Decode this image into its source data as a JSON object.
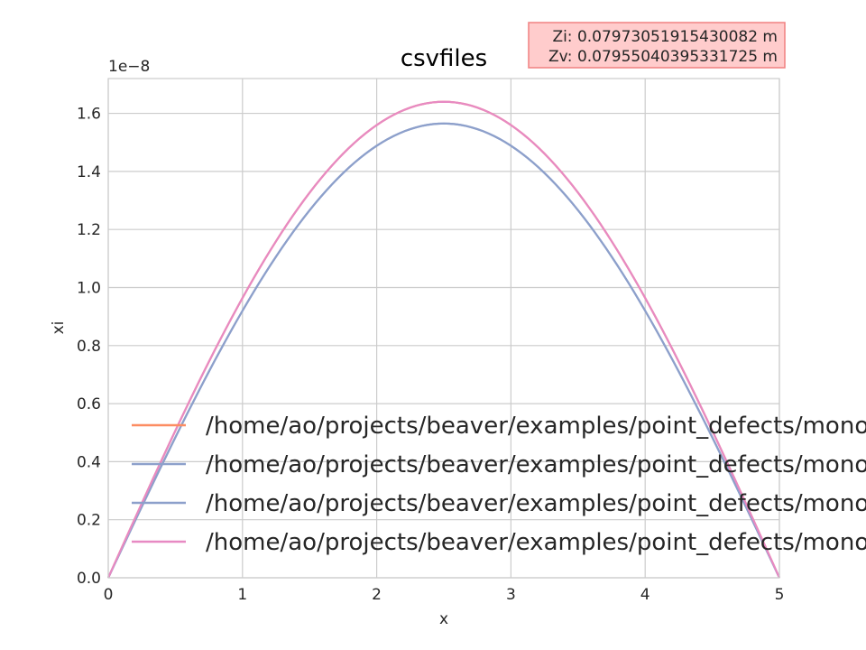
{
  "chart_data": {
    "type": "line",
    "title": "csvfiles",
    "xlabel": "x",
    "ylabel": "xi",
    "offset_label": "1e−8",
    "xlim": [
      0,
      5
    ],
    "ylim": [
      0,
      1.72
    ],
    "xticks": [
      0,
      1,
      2,
      3,
      4,
      5
    ],
    "xtick_labels": [
      "0",
      "1",
      "2",
      "3",
      "4",
      "5"
    ],
    "yticks": [
      0.0,
      0.2,
      0.4,
      0.6,
      0.8,
      1.0,
      1.2,
      1.4,
      1.6
    ],
    "ytick_labels": [
      "0.0",
      "0.2",
      "0.4",
      "0.6",
      "0.8",
      "1.0",
      "1.2",
      "1.4",
      "1.6"
    ],
    "grid": true,
    "legend_position": "lower-left",
    "series": [
      {
        "name": "/home/ao/projects/beaver/examples/point_defects/monod",
        "color": "#fc8d62",
        "x": [
          0,
          2.5,
          5
        ],
        "peak": 1.64
      },
      {
        "name": "/home/ao/projects/beaver/examples/point_defects/monod",
        "color": "#8da0cb",
        "x": [
          0,
          2.5,
          5
        ],
        "peak": 1.565
      },
      {
        "name": "/home/ao/projects/beaver/examples/point_defects/monod",
        "color": "#8da0cb",
        "x": [
          0,
          2.5,
          5
        ],
        "peak": 1.565
      },
      {
        "name": "/home/ao/projects/beaver/examples/point_defects/monod",
        "color": "#e78ac3",
        "x": [
          0,
          2.5,
          5
        ],
        "peak": 1.64
      }
    ],
    "annotation": {
      "lines": [
        "Zi: 0.07973051915430082 m",
        "Zv: 0.07955040395331725 m"
      ],
      "background": "#ffcccc",
      "border": "#f08080"
    }
  }
}
